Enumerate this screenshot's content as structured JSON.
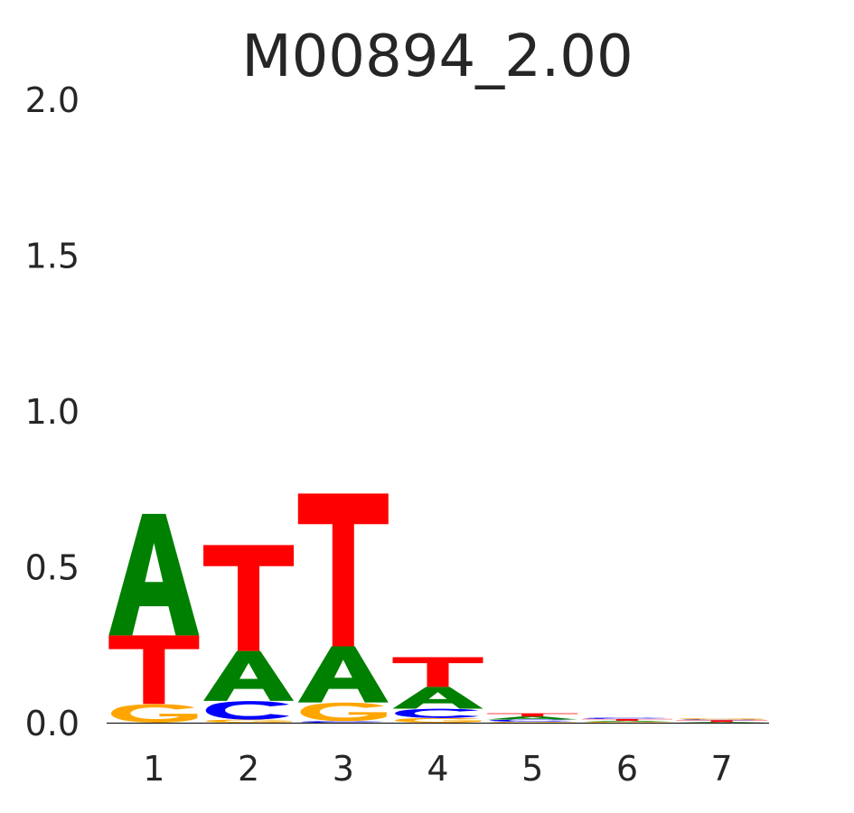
{
  "chart_data": {
    "type": "sequence-logo",
    "title": "M00894_2.00",
    "xlabel": "",
    "ylabel": "",
    "ylim": [
      0,
      2.0
    ],
    "y_ticks": [
      "0.0",
      "0.5",
      "1.0",
      "1.5",
      "2.0"
    ],
    "categories": [
      "1",
      "2",
      "3",
      "4",
      "5",
      "6",
      "7"
    ],
    "grid": false,
    "letter_colors": {
      "A": "#008000",
      "C": "#0000ff",
      "G": "#ffa500",
      "T": "#ff0000"
    },
    "positions": [
      {
        "position": "1",
        "stack": [
          {
            "letter": "G",
            "height": 0.06
          },
          {
            "letter": "T",
            "height": 0.22
          },
          {
            "letter": "A",
            "height": 0.39
          }
        ]
      },
      {
        "position": "2",
        "stack": [
          {
            "letter": "G",
            "height": 0.01
          },
          {
            "letter": "C",
            "height": 0.06
          },
          {
            "letter": "A",
            "height": 0.16
          },
          {
            "letter": "T",
            "height": 0.34
          }
        ]
      },
      {
        "position": "3",
        "stack": [
          {
            "letter": "C",
            "height": 0.005
          },
          {
            "letter": "G",
            "height": 0.06
          },
          {
            "letter": "A",
            "height": 0.18
          },
          {
            "letter": "T",
            "height": 0.49
          }
        ]
      },
      {
        "position": "4",
        "stack": [
          {
            "letter": "G",
            "height": 0.015
          },
          {
            "letter": "C",
            "height": 0.03
          },
          {
            "letter": "A",
            "height": 0.07
          },
          {
            "letter": "T",
            "height": 0.095
          }
        ]
      },
      {
        "position": "5",
        "stack": [
          {
            "letter": "G",
            "height": 0.003
          },
          {
            "letter": "C",
            "height": 0.007
          },
          {
            "letter": "A",
            "height": 0.01
          },
          {
            "letter": "T",
            "height": 0.01
          }
        ]
      },
      {
        "position": "6",
        "stack": [
          {
            "letter": "G",
            "height": 0.003
          },
          {
            "letter": "A",
            "height": 0.003
          },
          {
            "letter": "T",
            "height": 0.006
          },
          {
            "letter": "C",
            "height": 0.004
          }
        ]
      },
      {
        "position": "7",
        "stack": [
          {
            "letter": "A",
            "height": 0.002
          },
          {
            "letter": "T",
            "height": 0.006
          },
          {
            "letter": "C",
            "height": 0.002
          },
          {
            "letter": "G",
            "height": 0.004
          }
        ]
      }
    ]
  }
}
